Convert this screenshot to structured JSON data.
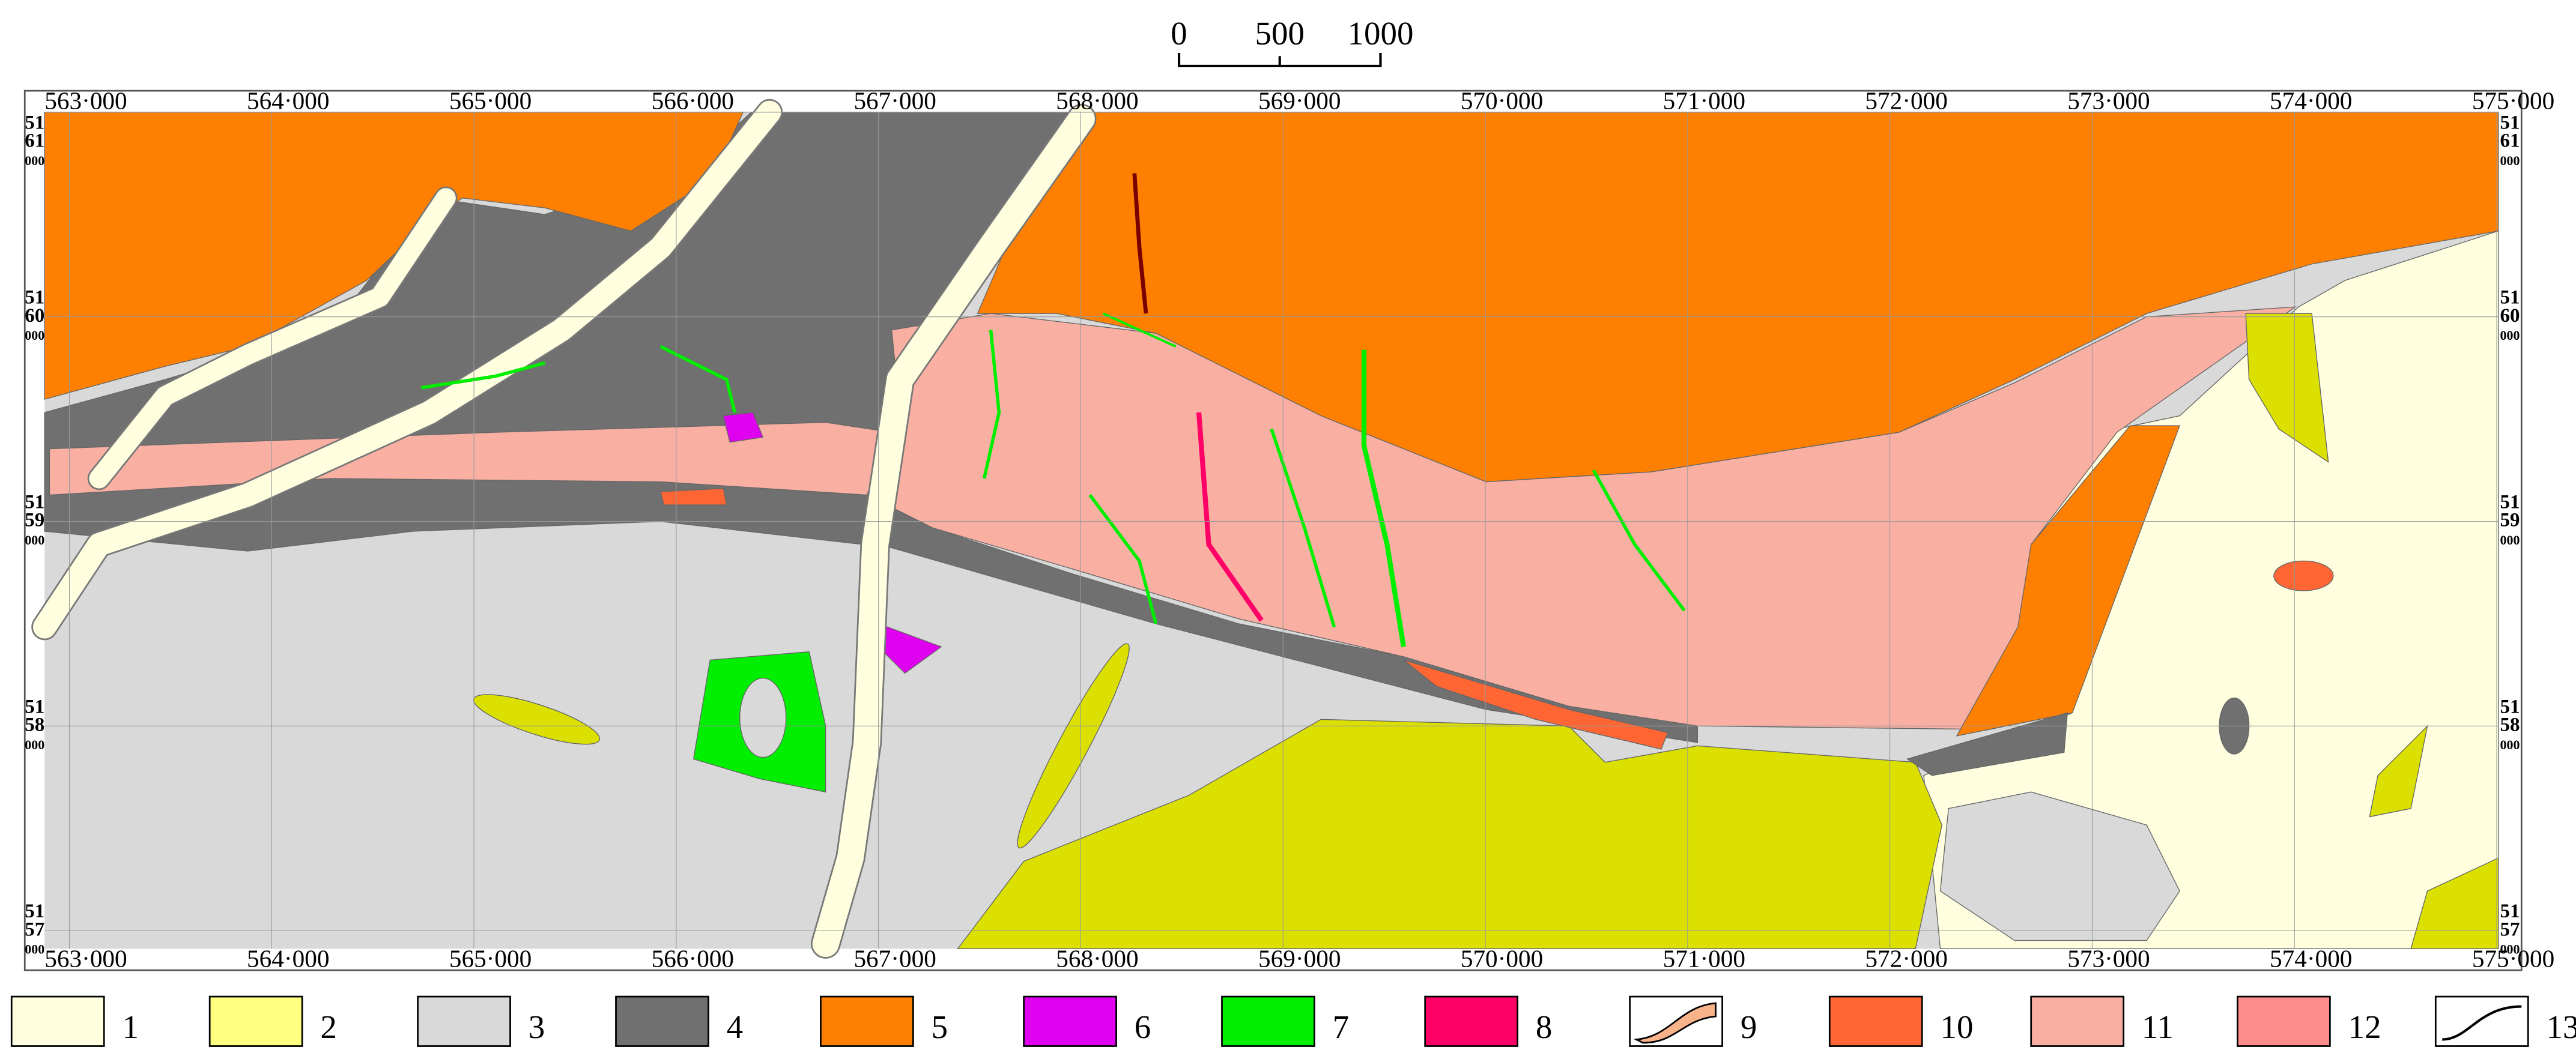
{
  "scale_bar": {
    "labels": [
      "0",
      "500",
      "1000"
    ]
  },
  "grid": {
    "x_labels": [
      "563·000",
      "564·000",
      "565·000",
      "566·000",
      "567·000",
      "568·000",
      "569·000",
      "570·000",
      "571·000",
      "572·000",
      "573·000",
      "574·000",
      "575·000"
    ],
    "y_labels": [
      [
        "51",
        "61",
        "000"
      ],
      [
        "51",
        "60",
        "000"
      ],
      [
        "51",
        "59",
        "000"
      ],
      [
        "51",
        "58",
        "000"
      ],
      [
        "51",
        "57",
        "000"
      ]
    ]
  },
  "legend": {
    "items": [
      {
        "label": "1",
        "color": "#ffffe0"
      },
      {
        "label": "2",
        "color": "#ffff80"
      },
      {
        "label": "3",
        "color": "#d9d9d9"
      },
      {
        "label": "4",
        "color": "#707070"
      },
      {
        "label": "5",
        "color": "#ff8000"
      },
      {
        "label": "6",
        "color": "#e000f0"
      },
      {
        "label": "7",
        "color": "#00ee00"
      },
      {
        "label": "8",
        "color": "#ff0066"
      },
      {
        "label": "9",
        "color": "#f9b38a",
        "symbol": "contact"
      },
      {
        "label": "10",
        "color": "#ff6633"
      },
      {
        "label": "11",
        "color": "#f9b0a3"
      },
      {
        "label": "12",
        "color": "#ff8c8c"
      },
      {
        "label": "13",
        "color": "#000000",
        "symbol": "line"
      }
    ]
  }
}
